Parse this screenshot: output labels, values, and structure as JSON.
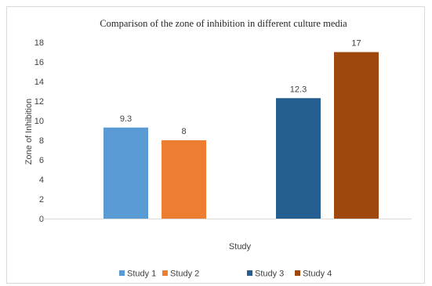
{
  "chart_data": {
    "type": "bar",
    "title": "Comparison of the zone of inhibition in different culture media",
    "xlabel": "Study",
    "ylabel": "Zone of Inhibition",
    "ylim": [
      0,
      18
    ],
    "yticks": [
      0,
      2,
      4,
      6,
      8,
      10,
      12,
      14,
      16,
      18
    ],
    "grid": false,
    "legend_position": "bottom",
    "groups": [
      {
        "bars": [
          {
            "name": "Study 1",
            "value": 9.3,
            "label": "9.3",
            "color": "#5b9bd5"
          },
          {
            "name": "Study 2",
            "value": 8,
            "label": "8",
            "color": "#ed7d31"
          }
        ]
      },
      {
        "bars": [
          {
            "name": "Study 3",
            "value": 12.3,
            "label": "12.3",
            "color": "#255e91"
          },
          {
            "name": "Study 4",
            "value": 17,
            "label": "17",
            "color": "#9e480e"
          }
        ]
      }
    ]
  }
}
